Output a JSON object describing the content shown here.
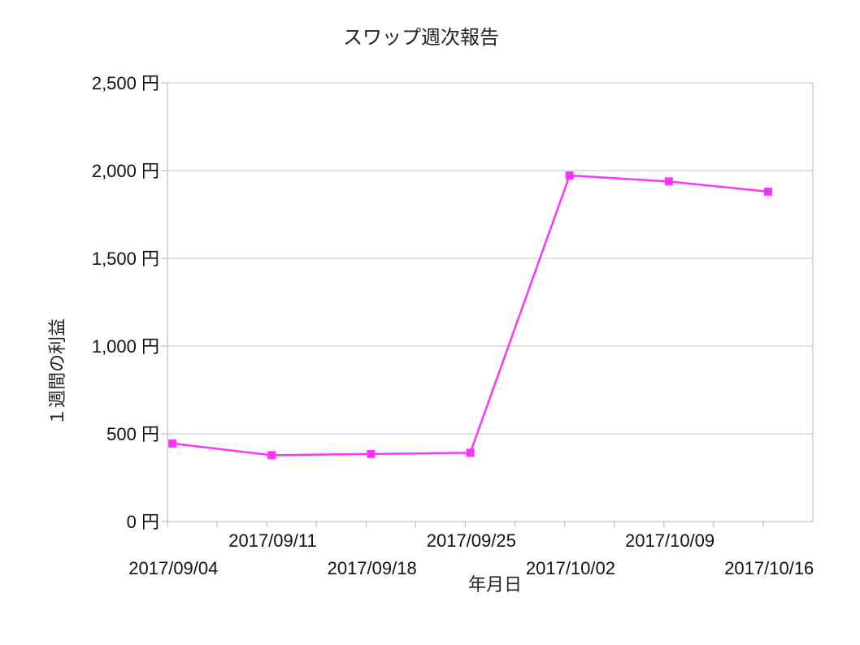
{
  "chart_data": {
    "type": "line",
    "title": "スワップ週次報告",
    "xlabel": "年月日",
    "ylabel": "１週間の利益",
    "x": [
      "2017/09/04",
      "2017/09/11",
      "2017/09/18",
      "2017/09/25",
      "2017/10/02",
      "2017/10/09",
      "2017/10/16"
    ],
    "y_ticks": [
      "0 円",
      "500 円",
      "1,000 円",
      "1,500 円",
      "2,000 円",
      "2,500 円"
    ],
    "ylim": [
      0,
      2500
    ],
    "grid": true,
    "legend": "none",
    "series": [
      {
        "values": [
          445,
          378,
          385,
          392,
          1972,
          1938,
          1880
        ],
        "color": "#ff33ff",
        "marker": "square"
      }
    ]
  }
}
